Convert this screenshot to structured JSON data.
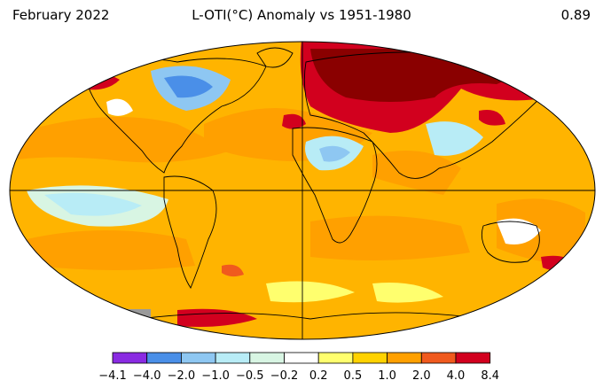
{
  "header": {
    "left": "February 2022",
    "center": "L-OTI(°C) Anomaly vs 1951-1980",
    "right": "0.89"
  },
  "colorbar": {
    "ticks": [
      "−4.1",
      "−4.0",
      "−2.0",
      "−1.0",
      "−0.5",
      "−0.2",
      "0.2",
      "0.5",
      "1.0",
      "2.0",
      "4.0",
      "8.4"
    ],
    "colors": [
      "#8a2be2",
      "#4a8fe8",
      "#8ec7f2",
      "#b8ecf6",
      "#d8f5e3",
      "#ffffff",
      "#ffff6e",
      "#ffd200",
      "#ffa000",
      "#f05a1e",
      "#d2001e"
    ]
  },
  "map": {
    "projection": "Robinson",
    "ocean_color": "#ffb400",
    "no_data_color": "#9a9a9a"
  }
}
